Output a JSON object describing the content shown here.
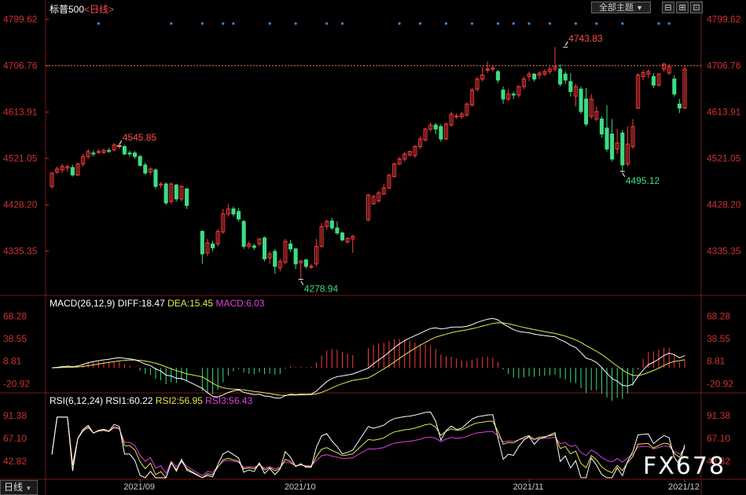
{
  "header": {
    "symbol": "标普500",
    "period": "<日线>",
    "theme_btn": "全部主题",
    "dropdown_glyph": "▼",
    "btn1": "⊟",
    "btn2": "⊞",
    "btn3": "⊡"
  },
  "macd": {
    "title": "MACD(26,12,9)",
    "diff": "DIFF:18.47",
    "dea": "DEA:15.45",
    "macd": "MACD:6.03"
  },
  "rsi": {
    "title": "RSI(6,12,24)",
    "rsi1": "RSI1:60.22",
    "rsi2": "RSI2:56.95",
    "rsi3": "RSI3:56.43"
  },
  "bottom_tab": "日线",
  "watermark": "FX678",
  "colors": {
    "up": "#ff3b3b",
    "down": "#3ddc84",
    "diff": "#ffffff",
    "dea": "#e6e64d",
    "macd": "#e040e0",
    "axis": "#d03030",
    "grid": "#8b1c1c",
    "rsi1": "#ffffff",
    "rsi2": "#e6e64d",
    "rsi3": "#e040e0"
  },
  "chart_data": {
    "type": "candlestick",
    "price_ticks": [
      "4799.62",
      "4706.76",
      "4613.91",
      "4521.05",
      "4428.20",
      "4335.35"
    ],
    "price_range": [
      4250,
      4810
    ],
    "reference_line": "4706.76",
    "x_labels": [
      "2021/09",
      "2021/10",
      "2021/11",
      "2021/12"
    ],
    "annotations": [
      {
        "label": "4545.85",
        "index": 13,
        "value": 4545.85
      },
      {
        "label": "4278.94",
        "index": 46,
        "value": 4278.94
      },
      {
        "label": "4743.83",
        "index": 95,
        "value": 4743.83
      },
      {
        "label": "4495.12",
        "index": 106,
        "value": 4495.12
      }
    ],
    "candles": [
      [
        4465,
        4492,
        4460,
        4493
      ],
      [
        4494,
        4500,
        4490,
        4505
      ],
      [
        4498,
        4505,
        4492,
        4510
      ],
      [
        4502,
        4505,
        4495,
        4508
      ],
      [
        4503,
        4488,
        4485,
        4508
      ],
      [
        4488,
        4510,
        4486,
        4513
      ],
      [
        4510,
        4525,
        4505,
        4530
      ],
      [
        4525,
        4535,
        4520,
        4540
      ],
      [
        4532,
        4530,
        4525,
        4537
      ],
      [
        4533,
        4535,
        4530,
        4540
      ],
      [
        4533,
        4537,
        4530,
        4541
      ],
      [
        4537,
        4536,
        4532,
        4542
      ],
      [
        4538,
        4548,
        4535,
        4552
      ],
      [
        4546,
        4547,
        4540,
        4550
      ],
      [
        4545,
        4530,
        4528,
        4548
      ],
      [
        4532,
        4530,
        4525,
        4537
      ],
      [
        4532,
        4525,
        4520,
        4536
      ],
      [
        4525,
        4507,
        4505,
        4528
      ],
      [
        4508,
        4492,
        4488,
        4513
      ],
      [
        4494,
        4500,
        4488,
        4503
      ],
      [
        4498,
        4465,
        4460,
        4502
      ],
      [
        4468,
        4470,
        4462,
        4474
      ],
      [
        4470,
        4432,
        4428,
        4473
      ],
      [
        4435,
        4470,
        4430,
        4473
      ],
      [
        4468,
        4440,
        4435,
        4470
      ],
      [
        4440,
        4465,
        4435,
        4468
      ],
      [
        4460,
        4427,
        4420,
        4462
      ],
      [
        4375,
        4330,
        4310,
        4378
      ],
      [
        4332,
        4352,
        4325,
        4360
      ],
      [
        4350,
        4342,
        4335,
        4356
      ],
      [
        4350,
        4375,
        4345,
        4380
      ],
      [
        4374,
        4410,
        4370,
        4420
      ],
      [
        4410,
        4420,
        4405,
        4430
      ],
      [
        4420,
        4410,
        4405,
        4425
      ],
      [
        4415,
        4400,
        4395,
        4422
      ],
      [
        4395,
        4345,
        4340,
        4398
      ],
      [
        4345,
        4350,
        4340,
        4355
      ],
      [
        4346,
        4343,
        4338,
        4350
      ],
      [
        4350,
        4360,
        4345,
        4362
      ],
      [
        4362,
        4320,
        4315,
        4365
      ],
      [
        4322,
        4330,
        4310,
        4335
      ],
      [
        4335,
        4305,
        4290,
        4340
      ],
      [
        4302,
        4315,
        4295,
        4320
      ],
      [
        4313,
        4355,
        4310,
        4360
      ],
      [
        4350,
        4340,
        4335,
        4358
      ],
      [
        4340,
        4310,
        4300,
        4342
      ],
      [
        4312,
        4316,
        4278.94,
        4318
      ],
      [
        4318,
        4305,
        4300,
        4320
      ],
      [
        4305,
        4305,
        4300,
        4310
      ],
      [
        4310,
        4345,
        4305,
        4360
      ],
      [
        4345,
        4385,
        4342,
        4392
      ],
      [
        4385,
        4395,
        4378,
        4398
      ],
      [
        4396,
        4382,
        4378,
        4402
      ],
      [
        4382,
        4372,
        4368,
        4395
      ],
      [
        4372,
        4358,
        4355,
        4374
      ],
      [
        4354,
        4361,
        4350,
        4364
      ],
      [
        4360,
        4365,
        4332,
        4368
      ],
      [
        4398,
        4448,
        4395,
        4450
      ],
      [
        4430,
        4445,
        4428,
        4448
      ],
      [
        4436,
        4452,
        4433,
        4456
      ],
      [
        4450,
        4462,
        4448,
        4470
      ],
      [
        4462,
        4488,
        4460,
        4490
      ],
      [
        4485,
        4510,
        4483,
        4513
      ],
      [
        4510,
        4520,
        4508,
        4524
      ],
      [
        4520,
        4530,
        4515,
        4535
      ],
      [
        4528,
        4535,
        4525,
        4537
      ],
      [
        4527,
        4545,
        4522,
        4548
      ],
      [
        4545,
        4560,
        4540,
        4565
      ],
      [
        4558,
        4580,
        4555,
        4582
      ],
      [
        4580,
        4588,
        4575,
        4593
      ],
      [
        4588,
        4580,
        4570,
        4592
      ],
      [
        4585,
        4560,
        4555,
        4590
      ],
      [
        4560,
        4590,
        4558,
        4593
      ],
      [
        4588,
        4610,
        4585,
        4615
      ],
      [
        4605,
        4606,
        4600,
        4612
      ],
      [
        4605,
        4610,
        4600,
        4615
      ],
      [
        4608,
        4630,
        4605,
        4633
      ],
      [
        4628,
        4658,
        4625,
        4662
      ],
      [
        4660,
        4680,
        4655,
        4685
      ],
      [
        4680,
        4688,
        4675,
        4705
      ],
      [
        4698,
        4700,
        4692,
        4715
      ],
      [
        4700,
        4702,
        4695,
        4708
      ],
      [
        4695,
        4678,
        4672,
        4698
      ],
      [
        4658,
        4640,
        4630,
        4665
      ],
      [
        4640,
        4650,
        4636,
        4660
      ],
      [
        4650,
        4648,
        4640,
        4655
      ],
      [
        4648,
        4665,
        4642,
        4667
      ],
      [
        4665,
        4680,
        4660,
        4685
      ],
      [
        4685,
        4690,
        4676,
        4695
      ],
      [
        4690,
        4680,
        4675,
        4692
      ],
      [
        4688,
        4692,
        4680,
        4695
      ],
      [
        4690,
        4695,
        4686,
        4700
      ],
      [
        4695,
        4700,
        4690,
        4705
      ],
      [
        4700,
        4705,
        4695,
        4743.83
      ],
      [
        4700,
        4670,
        4665,
        4710
      ],
      [
        4690,
        4678,
        4670,
        4695
      ],
      [
        4675,
        4655,
        4645,
        4692
      ],
      [
        4646,
        4665,
        4625,
        4670
      ],
      [
        4660,
        4615,
        4610,
        4665
      ],
      [
        4640,
        4590,
        4585,
        4662
      ],
      [
        4605,
        4640,
        4600,
        4650
      ],
      [
        4600,
        4615,
        4595,
        4625
      ],
      [
        4600,
        4570,
        4563,
        4605
      ],
      [
        4582,
        4540,
        4535,
        4628
      ],
      [
        4570,
        4520,
        4515,
        4600
      ],
      [
        4540,
        4552,
        4530,
        4580
      ],
      [
        4572,
        4508,
        4495.12,
        4578
      ],
      [
        4510,
        4550,
        4505,
        4585
      ],
      [
        4545,
        4585,
        4540,
        4600
      ],
      [
        4622,
        4688,
        4620,
        4692
      ],
      [
        4685,
        4693,
        4678,
        4698
      ],
      [
        4690,
        4695,
        4682,
        4700
      ],
      [
        4685,
        4668,
        4662,
        4692
      ],
      [
        4668,
        4690,
        4665,
        4692
      ],
      [
        4700,
        4710,
        4695,
        4712
      ],
      [
        4692,
        4705,
        4688,
        4710
      ],
      [
        4680,
        4650,
        4645,
        4688
      ],
      [
        4630,
        4622,
        4612,
        4640
      ],
      [
        4622,
        4700,
        4620,
        4706
      ]
    ],
    "gaps_after": [
      26,
      56
    ],
    "events": [
      9,
      23,
      27,
      31,
      33,
      40,
      45,
      51,
      54,
      63,
      67,
      72,
      77,
      82,
      85,
      88,
      92,
      97,
      101,
      106,
      113,
      115
    ],
    "macd_ticks": [
      "68.28",
      "38.55",
      "8.81",
      "-20.92"
    ],
    "macd_range": [
      -30,
      75
    ],
    "rsi_ticks": [
      "91.38",
      "67.10",
      "42.82"
    ],
    "rsi_range": [
      25,
      100
    ]
  }
}
